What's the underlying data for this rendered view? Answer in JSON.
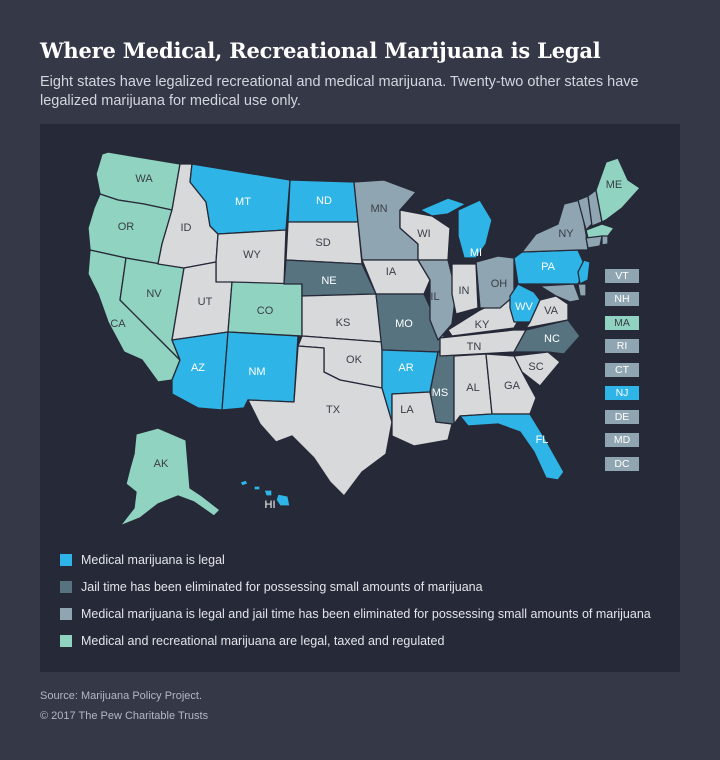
{
  "title": "Where Medical, Recreational Marijuana is Legal",
  "subtitle": "Eight states have legalized recreational and medical marijuana. Twenty-two other states have legalized marijuana for medical use only.",
  "colors": {
    "medical": "#2eb4e6",
    "decriminalized": "#56737f",
    "medical_decriminalized": "#8fa5b1",
    "recreational": "#8fd3c0",
    "none": "#d8d9db",
    "panel": "#262937",
    "page": "#343847"
  },
  "states": {
    "WA": "WA",
    "OR": "OR",
    "CA": "CA",
    "NV": "NV",
    "ID": "ID",
    "MT": "MT",
    "WY": "WY",
    "UT": "UT",
    "CO": "CO",
    "AZ": "AZ",
    "NM": "NM",
    "ND": "ND",
    "SD": "SD",
    "NE": "NE",
    "KS": "KS",
    "OK": "OK",
    "TX": "TX",
    "MN": "MN",
    "IA": "IA",
    "MO": "MO",
    "AR": "AR",
    "LA": "LA",
    "WI": "WI",
    "IL": "IL",
    "MS": "MS",
    "MI": "MI",
    "IN": "IN",
    "KY": "KY",
    "TN": "TN",
    "AL": "AL",
    "OH": "OH",
    "WV": "WV",
    "VA": "VA",
    "NC": "NC",
    "SC": "SC",
    "GA": "GA",
    "FL": "FL",
    "PA": "PA",
    "NY": "NY",
    "ME": "ME",
    "AK": "AK",
    "HI": "HI"
  },
  "northeast_boxes": [
    "VT",
    "NH",
    "MA",
    "RI",
    "CT",
    "NJ",
    "DE",
    "MD",
    "DC"
  ],
  "legend": [
    {
      "label": "Medical marijuana is legal",
      "color": "#2eb4e6"
    },
    {
      "label": "Jail time has been eliminated for possessing small amounts of marijuana",
      "color": "#56737f"
    },
    {
      "label": "Medical marijuana is legal and jail time has been eliminated for possessing small amounts of marijuana",
      "color": "#8fa5b1"
    },
    {
      "label": "Medical and recreational marijuana are legal, taxed and regulated",
      "color": "#8fd3c0"
    }
  ],
  "source": "Source: Marijuana Policy Project.",
  "copyright": "© 2017 The Pew Charitable Trusts"
}
